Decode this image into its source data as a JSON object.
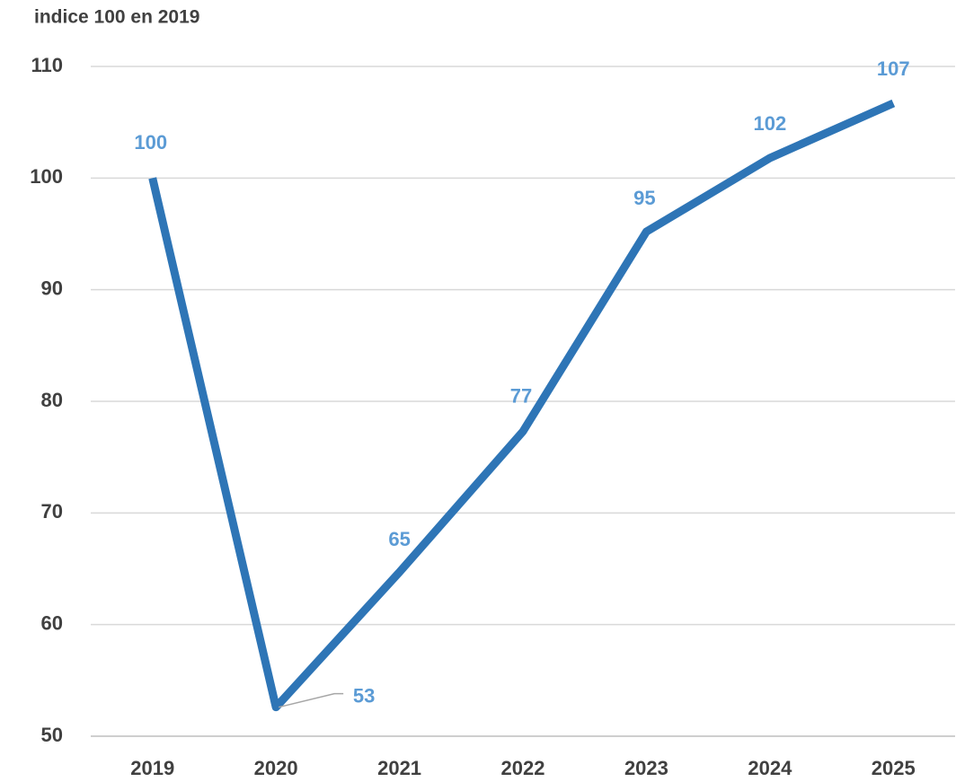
{
  "chart_data": {
    "type": "line",
    "title": "indice 100 en 2019",
    "categories": [
      "2019",
      "2020",
      "2021",
      "2022",
      "2023",
      "2024",
      "2025"
    ],
    "series": [
      {
        "name": "indice",
        "color": "#2e75b6",
        "values": [
          100,
          52.6,
          64.7,
          77.3,
          95.2,
          101.8,
          106.7
        ],
        "value_labels": [
          "100",
          "53",
          "65",
          "77",
          "95",
          "102",
          "107"
        ],
        "label_color": "#5b9bd5"
      }
    ],
    "ylim": [
      50,
      110
    ],
    "yticks": [
      50,
      60,
      70,
      80,
      90,
      100,
      110
    ],
    "grid": true
  }
}
